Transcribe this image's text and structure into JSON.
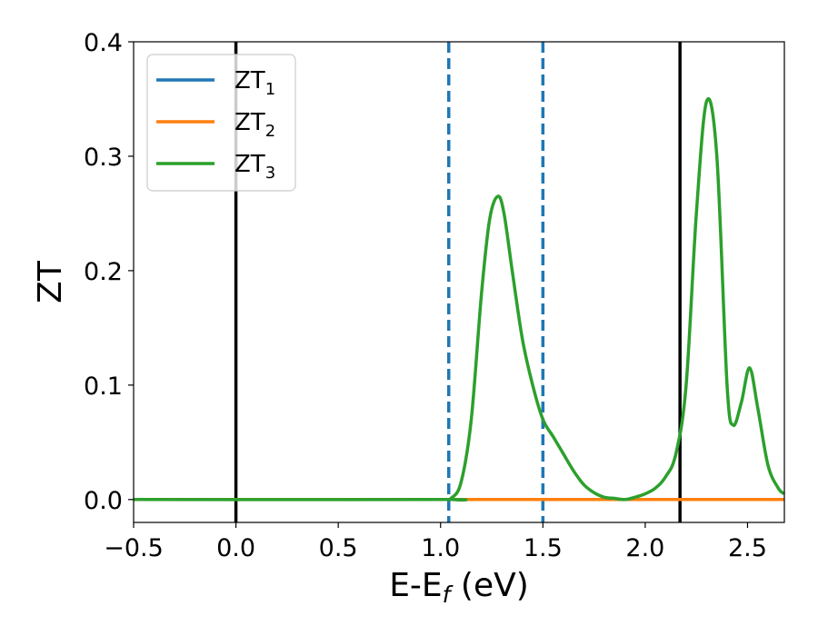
{
  "chart_data": {
    "type": "line",
    "title": "",
    "xlabel": "E-E",
    "xlabel_sub": "f",
    "xlabel_unit": " (eV)",
    "ylabel": "ZT",
    "xlim": [
      -0.5,
      2.68
    ],
    "ylim": [
      -0.02,
      0.4
    ],
    "xticks": [
      -0.5,
      0.0,
      0.5,
      1.0,
      1.5,
      2.0,
      2.5
    ],
    "xtick_labels": [
      "−0.5",
      "0.0",
      "0.5",
      "1.0",
      "1.5",
      "2.0",
      "2.5"
    ],
    "yticks": [
      0.0,
      0.1,
      0.2,
      0.3,
      0.4
    ],
    "ytick_labels": [
      "0.0",
      "0.1",
      "0.2",
      "0.3",
      "0.4"
    ],
    "grid": false,
    "legend_position": "top-left",
    "vlines": [
      {
        "x": 0.0,
        "style": "solid",
        "color": "#000000"
      },
      {
        "x": 1.04,
        "style": "dashed",
        "color": "#1f77b4"
      },
      {
        "x": 1.5,
        "style": "dashed",
        "color": "#1f77b4"
      },
      {
        "x": 2.17,
        "style": "solid",
        "color": "#000000"
      }
    ],
    "series": [
      {
        "name": "ZT",
        "sub": "1",
        "color": "#1f77b4",
        "x": [
          -0.5,
          2.68
        ],
        "y": [
          0.0,
          0.0
        ]
      },
      {
        "name": "ZT",
        "sub": "2",
        "color": "#ff7f0e",
        "x": [
          -0.5,
          2.68
        ],
        "y": [
          0.0,
          0.0
        ]
      },
      {
        "name": "ZT",
        "sub": "3",
        "color": "#2ca02c",
        "x": [
          -0.5,
          1.0,
          1.05,
          1.1,
          1.15,
          1.2,
          1.24,
          1.28,
          1.31,
          1.35,
          1.4,
          1.45,
          1.5,
          1.55,
          1.6,
          1.65,
          1.7,
          1.75,
          1.8,
          1.85,
          1.9,
          1.95,
          2.0,
          2.05,
          2.1,
          2.15,
          2.2,
          2.25,
          2.3,
          2.35,
          2.4,
          2.43,
          2.47,
          2.51,
          2.55,
          2.6,
          2.65,
          2.68
        ],
        "y": [
          0.0,
          0.0,
          0.001,
          0.015,
          0.07,
          0.18,
          0.245,
          0.265,
          0.25,
          0.2,
          0.14,
          0.1,
          0.07,
          0.055,
          0.04,
          0.025,
          0.013,
          0.006,
          0.002,
          0.001,
          0.0,
          0.002,
          0.005,
          0.01,
          0.02,
          0.04,
          0.1,
          0.25,
          0.348,
          0.3,
          0.1,
          0.065,
          0.085,
          0.115,
          0.08,
          0.03,
          0.01,
          0.005
        ]
      }
    ]
  }
}
